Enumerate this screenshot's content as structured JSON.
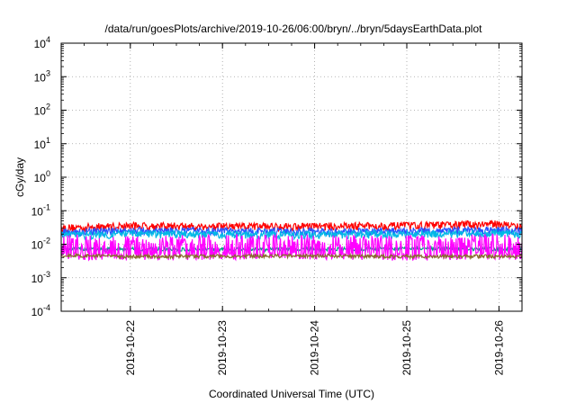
{
  "chart_data": {
    "type": "line",
    "title": "/data/run/goesPlots/archive/2019-10-26/06:00/bryn/../bryn/5daysEarthData.plot",
    "xlabel": "Coordinated Universal Time (UTC)",
    "ylabel": "cGy/day",
    "yscale": "log",
    "ylim": [
      0.0001,
      10000
    ],
    "xlim": [
      "2019-10-21T06:00",
      "2019-10-26T06:00"
    ],
    "grid": true,
    "legend": "none",
    "y_ticks": [
      {
        "base": "10",
        "exp": "4"
      },
      {
        "base": "10",
        "exp": "3"
      },
      {
        "base": "10",
        "exp": "2"
      },
      {
        "base": "10",
        "exp": "1"
      },
      {
        "base": "10",
        "exp": "0"
      },
      {
        "base": "10",
        "exp": "-1"
      },
      {
        "base": "10",
        "exp": "-2"
      },
      {
        "base": "10",
        "exp": "-3"
      },
      {
        "base": "10",
        "exp": "-4"
      }
    ],
    "x_ticks": [
      "2019-10-22",
      "2019-10-23",
      "2019-10-24",
      "2019-10-25",
      "2019-10-26"
    ],
    "series": [
      {
        "color": "#ff0000",
        "x": [
          "2019-10-21T06:00",
          "2019-10-22T00:00",
          "2019-10-23T00:00",
          "2019-10-24T00:00",
          "2019-10-25T00:00",
          "2019-10-26T00:00",
          "2019-10-26T06:00"
        ],
        "values": [
          0.03,
          0.035,
          0.033,
          0.034,
          0.035,
          0.04,
          0.032
        ]
      },
      {
        "color": "#2a52ff",
        "x": [
          "2019-10-21T06:00",
          "2019-10-22T00:00",
          "2019-10-23T00:00",
          "2019-10-24T00:00",
          "2019-10-25T00:00",
          "2019-10-26T00:00",
          "2019-10-26T06:00"
        ],
        "values": [
          0.022,
          0.025,
          0.024,
          0.023,
          0.024,
          0.026,
          0.024
        ]
      },
      {
        "color": "#00b8e6",
        "x": [
          "2019-10-21T06:00",
          "2019-10-22T00:00",
          "2019-10-23T00:00",
          "2019-10-24T00:00",
          "2019-10-25T00:00",
          "2019-10-26T00:00",
          "2019-10-26T06:00"
        ],
        "values": [
          0.018,
          0.02,
          0.019,
          0.019,
          0.02,
          0.021,
          0.02
        ]
      },
      {
        "color": "#00a080",
        "x": [
          "2019-10-21T06:00",
          "2019-10-22T00:00",
          "2019-10-23T00:00",
          "2019-10-24T00:00",
          "2019-10-25T00:00",
          "2019-10-26T00:00",
          "2019-10-26T06:00"
        ],
        "values": [
          0.007,
          0.007,
          0.0068,
          0.007,
          0.0072,
          0.007,
          0.007
        ]
      },
      {
        "color": "#ff00ff",
        "x": [
          "2019-10-21T06:00",
          "2019-10-22T00:00",
          "2019-10-23T00:00",
          "2019-10-24T00:00",
          "2019-10-25T00:00",
          "2019-10-26T00:00",
          "2019-10-26T06:00"
        ],
        "values": [
          0.005,
          0.0045,
          0.005,
          0.0048,
          0.0046,
          0.005,
          0.0045
        ]
      },
      {
        "color": "#8a6a30",
        "x": [
          "2019-10-21T06:00",
          "2019-10-22T00:00",
          "2019-10-23T00:00",
          "2019-10-24T00:00",
          "2019-10-25T00:00",
          "2019-10-26T00:00",
          "2019-10-26T06:00"
        ],
        "values": [
          0.0045,
          0.0042,
          0.0043,
          0.0044,
          0.0042,
          0.0043,
          0.0042
        ]
      }
    ]
  }
}
